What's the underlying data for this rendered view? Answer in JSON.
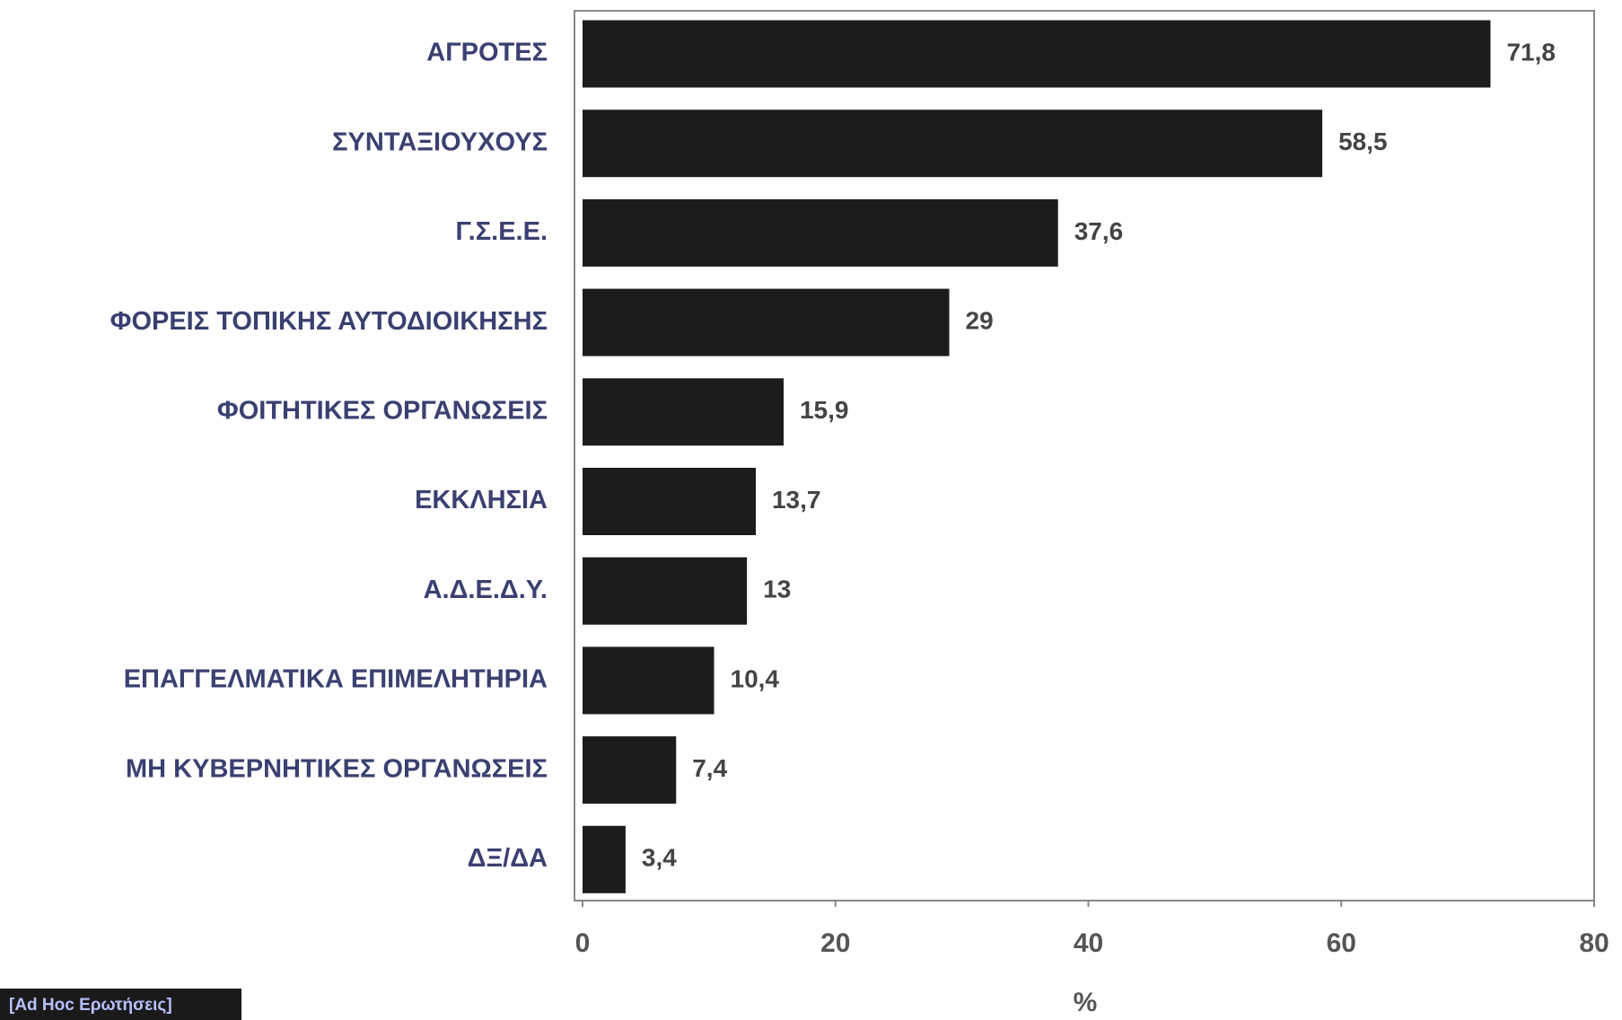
{
  "chart_data": {
    "type": "hbar",
    "categories": [
      "ΑΓΡΟΤΕΣ",
      "ΣΥΝΤΑΞΙΟΥΧΟΥΣ",
      "Γ.Σ.Ε.Ε.",
      "ΦΟΡΕΙΣ ΤΟΠΙΚΗΣ ΑΥΤΟΔΙΟΙΚΗΣΗΣ",
      "ΦΟΙΤΗΤΙΚΕΣ ΟΡΓΑΝΩΣΕΙΣ",
      "ΕΚΚΛΗΣΙΑ",
      "Α.Δ.Ε.Δ.Υ.",
      "ΕΠΑΓΓΕΛΜΑΤΙΚΑ ΕΠΙΜΕΛΗΤΗΡΙΑ",
      "ΜΗ ΚΥΒΕΡΝΗΤΙΚΕΣ ΟΡΓΑΝΩΣΕΙΣ",
      "ΔΞ/ΔΑ"
    ],
    "values": [
      71.8,
      58.5,
      37.6,
      29,
      15.9,
      13.7,
      13,
      10.4,
      7.4,
      3.4
    ],
    "value_labels": [
      "71,8",
      "58,5",
      "37,6",
      "29",
      "15,9",
      "13,7",
      "13",
      "10,4",
      "7,4",
      "3,4"
    ],
    "color": "#1c1c1c",
    "xlim": [
      0,
      80
    ],
    "xticks": [
      0,
      20,
      40,
      60,
      80
    ],
    "xlabel": "%",
    "badge": "[Ad Hoc Ερωτήσεις]"
  }
}
